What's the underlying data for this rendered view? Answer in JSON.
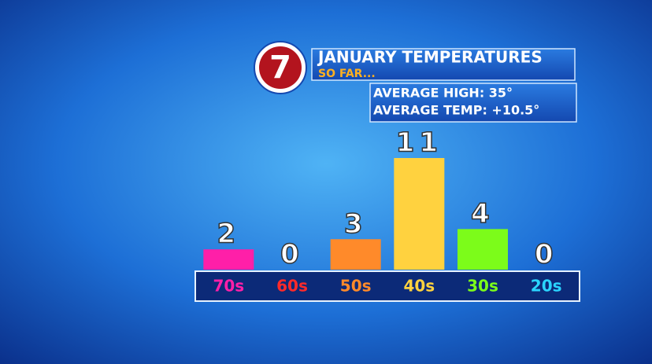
{
  "chart_data": {
    "type": "bar",
    "logo": "7",
    "title": "JANUARY TEMPERATURES",
    "subtitle": "SO FAR...",
    "annotations": [
      "AVERAGE HIGH: 35°",
      "AVERAGE TEMP: +10.5°"
    ],
    "categories": [
      "70s",
      "60s",
      "50s",
      "40s",
      "30s",
      "20s"
    ],
    "values": [
      2,
      0,
      3,
      11,
      4,
      0
    ],
    "colors": [
      "#ff1fa8",
      "#ff2a2a",
      "#ff8a2a",
      "#ffd23f",
      "#7cfc1a",
      "#2ad4ff"
    ]
  }
}
